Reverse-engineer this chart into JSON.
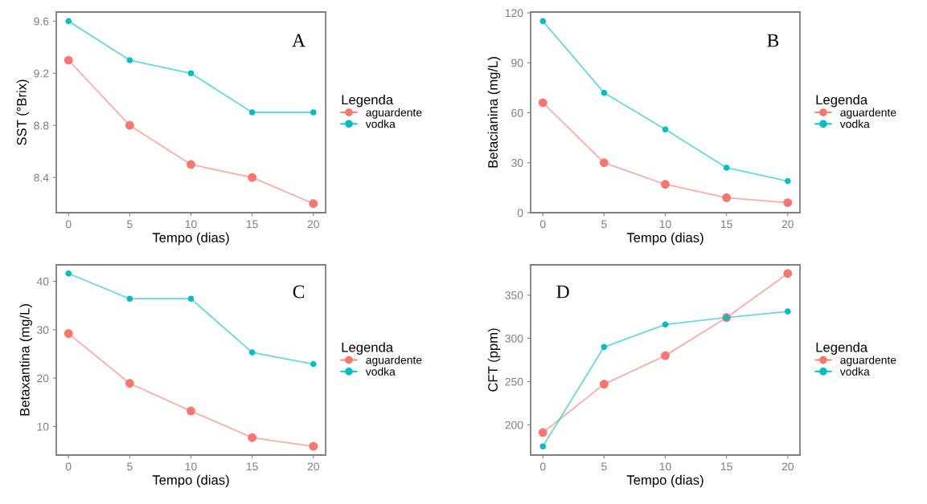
{
  "chart_data": [
    {
      "type": "line",
      "x": [
        0,
        5,
        10,
        15,
        20
      ],
      "xlabel": "Tempo (dias)",
      "ylabel": "SST (°Brix)",
      "xlim": [
        -1,
        21
      ],
      "xticks": [
        0,
        5,
        10,
        15,
        20
      ],
      "ylim": [
        8.13,
        9.67
      ],
      "yticks": [
        {
          "value": 8.4,
          "label": "8.4"
        },
        {
          "value": 8.8,
          "label": "8.8"
        },
        {
          "value": 9.2,
          "label": "9.2"
        },
        {
          "value": 9.6,
          "label": "9.6"
        }
      ],
      "legend": "right",
      "legend_title": "Legenda",
      "marker": "circle",
      "grid": false,
      "annotations": [
        "A"
      ],
      "series": [
        {
          "name": "aguardente",
          "color": "#f8766d",
          "values": [
            9.3,
            8.8,
            8.5,
            8.4,
            8.2
          ]
        },
        {
          "name": "vodka",
          "color": "#00bfc4",
          "values": [
            9.6,
            9.3,
            9.2,
            8.9,
            8.9
          ]
        }
      ]
    },
    {
      "type": "line",
      "x": [
        0,
        5,
        10,
        15,
        20
      ],
      "xlabel": "Tempo (dias)",
      "ylabel": "Betacianina (mg/L)",
      "xlim": [
        -1,
        21
      ],
      "xticks": [
        0,
        5,
        10,
        15,
        20
      ],
      "ylim": [
        0,
        120.5
      ],
      "yticks": [
        0,
        30,
        60,
        90,
        120
      ],
      "legend": "right",
      "legend_title": "Legenda",
      "marker": "circle",
      "grid": false,
      "annotations": [
        "B"
      ],
      "series": [
        {
          "name": "aguardente",
          "color": "#f8766d",
          "values": [
            66,
            30,
            17,
            9,
            6
          ]
        },
        {
          "name": "vodka",
          "color": "#00bfc4",
          "values": [
            115,
            72,
            50,
            27,
            19
          ]
        }
      ]
    },
    {
      "type": "line",
      "x": [
        0,
        5,
        10,
        15,
        20
      ],
      "xlabel": "Tempo (dias)",
      "ylabel": "Betaxantina (mg/L)",
      "xlim": [
        -1,
        21
      ],
      "xticks": [
        0,
        5,
        10,
        15,
        20
      ],
      "ylim": [
        4.1,
        43.4
      ],
      "yticks": [
        10,
        20,
        30,
        40
      ],
      "legend": "right",
      "legend_title": "Legenda",
      "marker": "circle",
      "grid": false,
      "annotations": [
        "C"
      ],
      "series": [
        {
          "name": "aguardente",
          "color": "#f8766d",
          "values": [
            29.2,
            18.9,
            13.2,
            7.7,
            5.9
          ]
        },
        {
          "name": "vodka",
          "color": "#00bfc4",
          "values": [
            41.6,
            36.4,
            36.4,
            25.3,
            22.9
          ]
        }
      ]
    },
    {
      "type": "line",
      "x": [
        0,
        5,
        10,
        15,
        20
      ],
      "xlabel": "Tempo (dias)",
      "ylabel": "CFT (ppm)",
      "xlim": [
        -1,
        21
      ],
      "xticks": [
        0,
        5,
        10,
        15,
        20
      ],
      "ylim": [
        165,
        385
      ],
      "yticks": [
        200,
        250,
        300,
        350
      ],
      "legend": "right",
      "legend_title": "Legenda",
      "marker": "circle",
      "grid": false,
      "annotations": [
        "D"
      ],
      "series": [
        {
          "name": "aguardente",
          "color": "#f8766d",
          "values": [
            191,
            247,
            280,
            324,
            375
          ]
        },
        {
          "name": "vodka",
          "color": "#00bfc4",
          "values": [
            175,
            290,
            316,
            324,
            331
          ]
        }
      ]
    }
  ]
}
